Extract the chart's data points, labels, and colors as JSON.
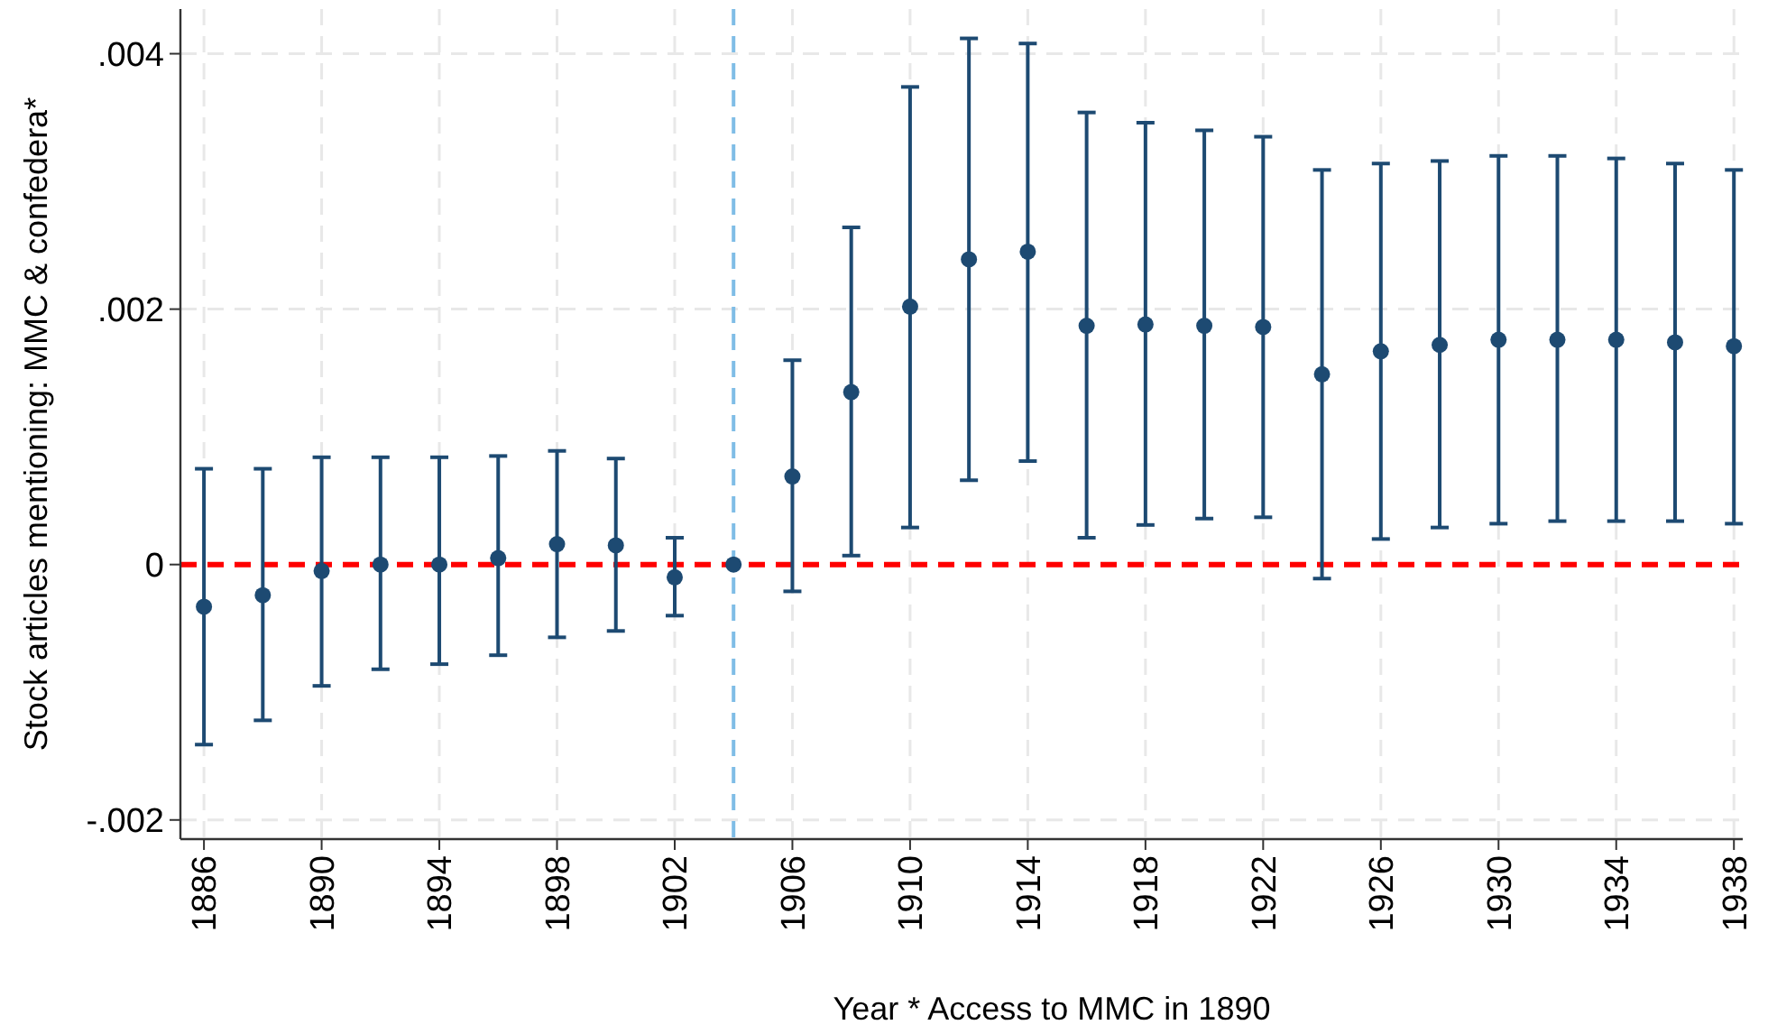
{
  "chart_data": {
    "type": "scatter",
    "xlabel": "Year * Access to MMC in 1890",
    "ylabel": "Stock articles mentioning: MMC & confedera*",
    "x": [
      1886,
      1888,
      1890,
      1892,
      1894,
      1896,
      1898,
      1900,
      1902,
      1904,
      1906,
      1908,
      1910,
      1912,
      1914,
      1916,
      1918,
      1920,
      1922,
      1924,
      1926,
      1928,
      1930,
      1932,
      1934,
      1936,
      1938
    ],
    "series": [
      {
        "color": "#1d4a72",
        "values": [
          -0.00033,
          -0.00024,
          -5e-05,
          0,
          0,
          5e-05,
          0.00016,
          0.00015,
          -0.0001,
          0,
          0.00069,
          0.00135,
          0.00202,
          0.00239,
          0.00245,
          0.00187,
          0.00188,
          0.00187,
          0.00186,
          0.00149,
          0.00167,
          0.00172,
          0.00176,
          0.00176,
          0.00176,
          0.00174,
          0.00171
        ],
        "errors": [
          [
            -0.00141,
            0.00075
          ],
          [
            -0.00122,
            0.00075
          ],
          [
            -0.00095,
            0.00084
          ],
          [
            -0.00082,
            0.00084
          ],
          [
            -0.00078,
            0.00084
          ],
          [
            -0.00071,
            0.00085
          ],
          [
            -0.00057,
            0.00089
          ],
          [
            -0.00052,
            0.00083
          ],
          [
            -0.0004,
            0.00021
          ],
          null,
          [
            -0.00021,
            0.0016
          ],
          [
            7e-05,
            0.00264
          ],
          [
            0.00029,
            0.00374
          ],
          [
            0.00066,
            0.00412
          ],
          [
            0.00081,
            0.00408
          ],
          [
            0.00021,
            0.00354
          ],
          [
            0.00031,
            0.00346
          ],
          [
            0.00036,
            0.0034
          ],
          [
            0.00037,
            0.00335
          ],
          [
            -0.00011,
            0.00309
          ],
          [
            0.0002,
            0.00314
          ],
          [
            0.00029,
            0.00316
          ],
          [
            0.00032,
            0.0032
          ],
          [
            0.00034,
            0.0032
          ],
          [
            0.00034,
            0.00318
          ],
          [
            0.00034,
            0.00314
          ],
          [
            0.00032,
            0.00309
          ]
        ]
      }
    ],
    "xlim": [
      1885.2,
      1938.3
    ],
    "ylim": [
      -0.00215,
      0.00435
    ],
    "xticks": [
      1886,
      1890,
      1894,
      1898,
      1902,
      1906,
      1910,
      1914,
      1918,
      1922,
      1926,
      1930,
      1934,
      1938
    ],
    "yticks": [
      {
        "value": -0.002,
        "label": "-.002"
      },
      {
        "value": 0,
        "label": "0"
      },
      {
        "value": 0.002,
        "label": ".002"
      },
      {
        "value": 0.004,
        "label": ".004"
      }
    ],
    "grid": true,
    "marker": "circle",
    "ref_lines": [
      {
        "axis": "y",
        "value": 0,
        "color": "#ff0000",
        "line_style": "dashed"
      },
      {
        "axis": "x",
        "value": 1904,
        "color": "#7fbde6",
        "line_style": "dashed"
      }
    ]
  }
}
